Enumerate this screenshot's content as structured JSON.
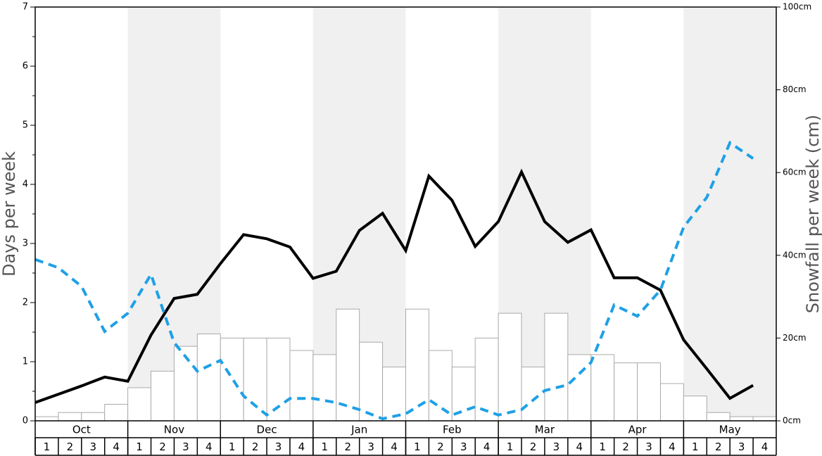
{
  "chart_data": {
    "type": "combo",
    "months": [
      "Oct",
      "Nov",
      "Dec",
      "Jan",
      "Feb",
      "Mar",
      "Apr",
      "May"
    ],
    "categories": [
      "1",
      "2",
      "3",
      "4",
      "1",
      "2",
      "3",
      "4",
      "1",
      "2",
      "3",
      "4",
      "1",
      "2",
      "3",
      "4",
      "1",
      "2",
      "3",
      "4",
      "1",
      "2",
      "3",
      "4",
      "1",
      "2",
      "3",
      "4",
      "1",
      "2",
      "3",
      "4"
    ],
    "y_label": "Days per week",
    "y2_label": "Snowfall per week (cm)",
    "ylim": [
      0,
      7
    ],
    "yticks": [
      0,
      1,
      2,
      3,
      4,
      5,
      6,
      7
    ],
    "yminorticks": [
      0.5,
      1.5,
      2.5,
      3.5,
      4.5,
      5.5,
      6.5
    ],
    "y2lim": [
      0,
      100
    ],
    "y2ticks": [
      {
        "value": 0,
        "label": "0cm"
      },
      {
        "value": 20,
        "label": "20cm"
      },
      {
        "value": 40,
        "label": "40cm"
      },
      {
        "value": 60,
        "label": "60cm"
      },
      {
        "value": 80,
        "label": "80cm"
      },
      {
        "value": 100,
        "label": "100cm"
      }
    ],
    "shade_alternate_months": true,
    "shade_color": "#f0f0f0",
    "series": [
      {
        "type": "bar",
        "axis": "y2",
        "color": "#ffffff",
        "stroke": "#aaaaaa",
        "values": [
          1,
          2,
          2,
          4,
          8,
          12,
          18,
          21,
          20,
          20,
          20,
          17,
          16,
          27,
          19,
          13,
          27,
          17,
          13,
          20,
          26,
          13,
          26,
          16,
          16,
          14,
          14,
          9,
          6,
          2,
          1,
          1
        ]
      },
      {
        "type": "line",
        "color": "#000000",
        "values": [
          0.31,
          0.45,
          0.59,
          0.74,
          0.67,
          1.45,
          2.07,
          2.14,
          2.66,
          3.15,
          3.08,
          2.94,
          2.41,
          2.53,
          3.22,
          3.51,
          2.88,
          4.14,
          3.73,
          2.95,
          3.37,
          4.21,
          3.37,
          3.02,
          3.23,
          2.42,
          2.42,
          2.21,
          1.37,
          0.88,
          0.38,
          0.6
        ]
      },
      {
        "type": "line",
        "axis": "y2",
        "dashed": true,
        "color": "#1ea0e6",
        "values": [
          39,
          37,
          32.5,
          21.6,
          26,
          35.4,
          18.9,
          12,
          14.6,
          6,
          1.4,
          5.4,
          5.4,
          4.4,
          2.7,
          0.5,
          1.7,
          5.1,
          1.4,
          3.4,
          1.4,
          2.7,
          7.3,
          8.7,
          14.1,
          28,
          25.3,
          31.6,
          46.8,
          54,
          67.2,
          63.4
        ]
      }
    ]
  }
}
